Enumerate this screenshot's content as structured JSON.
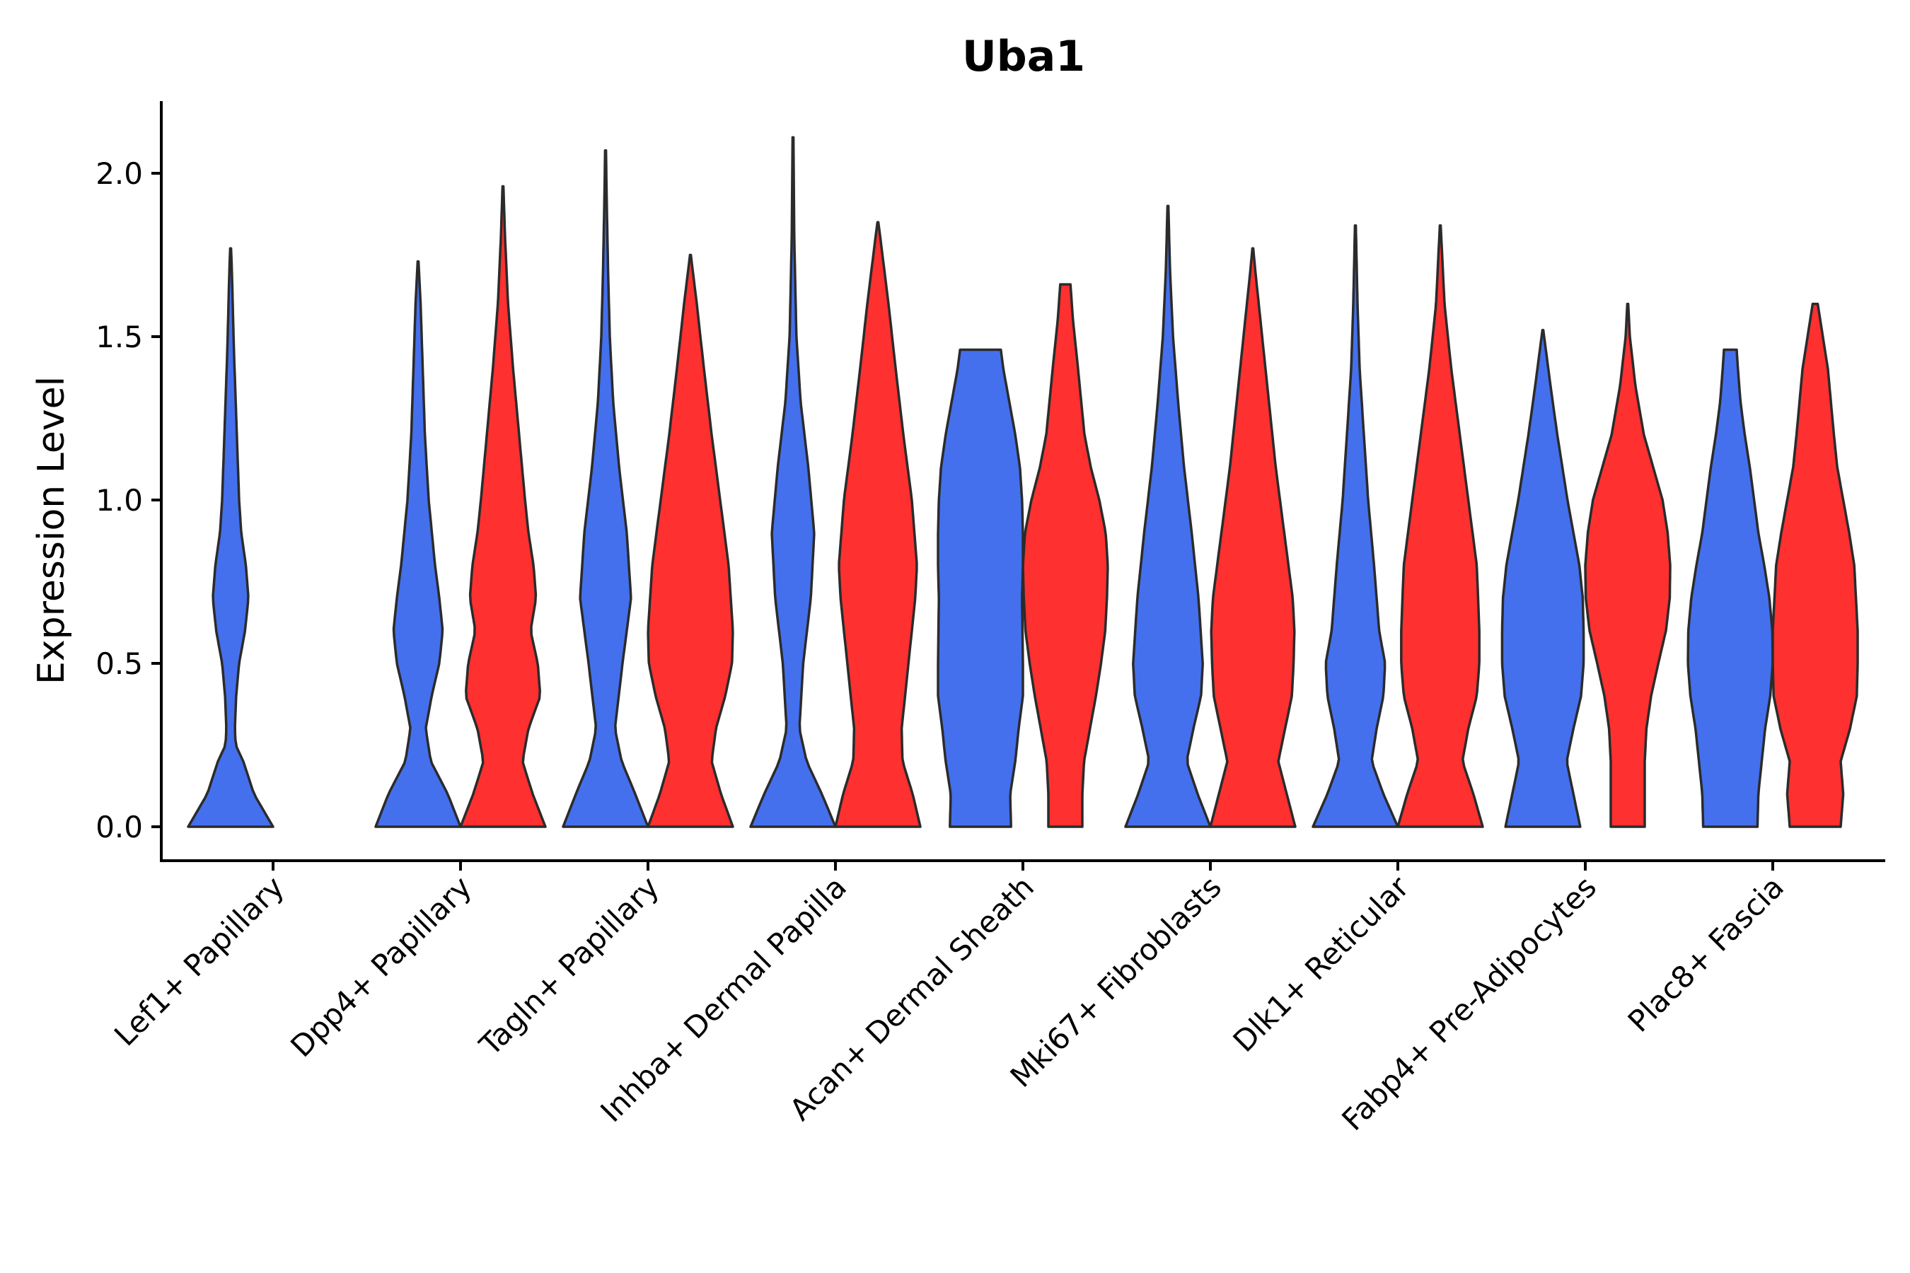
{
  "chart_data": {
    "type": "violin",
    "title": "Uba1",
    "xlabel": "",
    "ylabel": "Expression Level",
    "ylim": [
      -0.1,
      2.22
    ],
    "yticks": [
      0.0,
      0.5,
      1.0,
      1.5,
      2.0
    ],
    "ytick_labels": [
      "0.0",
      "0.5",
      "1.0",
      "1.5",
      "2.0"
    ],
    "grid": false,
    "legend": "none",
    "colors": {
      "blue": "#4470EE",
      "red": "#FF3030",
      "outline": "#2B2B2B"
    },
    "categories": [
      "Lef1+ Papillary",
      "Dpp4+ Papillary",
      "Tagln+ Papillary",
      "Inhba+ Dermal Papilla",
      "Acan+ Dermal Sheath",
      "Mki67+ Fibroblasts",
      "Dlk1+ Reticular",
      "Fabp4+ Pre-Adipocytes",
      "Plac8+ Fascia"
    ],
    "violins": [
      {
        "category": 0,
        "color": "blue",
        "max": 1.77,
        "profile": [
          [
            0,
            1.0
          ],
          [
            0.1,
            0.55
          ],
          [
            0.2,
            0.3
          ],
          [
            0.25,
            0.12
          ],
          [
            0.3,
            0.1
          ],
          [
            0.4,
            0.13
          ],
          [
            0.5,
            0.2
          ],
          [
            0.6,
            0.34
          ],
          [
            0.7,
            0.42
          ],
          [
            0.8,
            0.36
          ],
          [
            0.9,
            0.25
          ],
          [
            1.0,
            0.2
          ],
          [
            1.15,
            0.16
          ],
          [
            1.3,
            0.12
          ],
          [
            1.45,
            0.08
          ],
          [
            1.6,
            0.05
          ],
          [
            1.7,
            0.03
          ],
          [
            1.77,
            0.01
          ]
        ]
      },
      {
        "category": 1,
        "color": "blue",
        "max": 1.73,
        "profile": [
          [
            0,
            1.0
          ],
          [
            0.1,
            0.7
          ],
          [
            0.2,
            0.3
          ],
          [
            0.3,
            0.18
          ],
          [
            0.4,
            0.32
          ],
          [
            0.5,
            0.5
          ],
          [
            0.6,
            0.58
          ],
          [
            0.7,
            0.5
          ],
          [
            0.8,
            0.4
          ],
          [
            1.0,
            0.25
          ],
          [
            1.2,
            0.16
          ],
          [
            1.4,
            0.11
          ],
          [
            1.6,
            0.06
          ],
          [
            1.73,
            0.01
          ]
        ]
      },
      {
        "category": 1,
        "color": "red",
        "max": 1.96,
        "profile": [
          [
            0,
            1.0
          ],
          [
            0.1,
            0.7
          ],
          [
            0.2,
            0.46
          ],
          [
            0.3,
            0.6
          ],
          [
            0.4,
            0.88
          ],
          [
            0.5,
            0.82
          ],
          [
            0.6,
            0.65
          ],
          [
            0.7,
            0.78
          ],
          [
            0.8,
            0.72
          ],
          [
            0.9,
            0.6
          ],
          [
            1.0,
            0.52
          ],
          [
            1.2,
            0.38
          ],
          [
            1.4,
            0.24
          ],
          [
            1.6,
            0.12
          ],
          [
            1.8,
            0.05
          ],
          [
            1.96,
            0.01
          ]
        ]
      },
      {
        "category": 2,
        "color": "blue",
        "max": 2.07,
        "profile": [
          [
            0,
            1.0
          ],
          [
            0.1,
            0.7
          ],
          [
            0.2,
            0.38
          ],
          [
            0.3,
            0.22
          ],
          [
            0.5,
            0.4
          ],
          [
            0.7,
            0.6
          ],
          [
            0.9,
            0.5
          ],
          [
            1.1,
            0.32
          ],
          [
            1.3,
            0.18
          ],
          [
            1.5,
            0.1
          ],
          [
            1.7,
            0.06
          ],
          [
            1.9,
            0.03
          ],
          [
            2.07,
            0.01
          ]
        ]
      },
      {
        "category": 2,
        "color": "red",
        "max": 1.75,
        "profile": [
          [
            0,
            1.0
          ],
          [
            0.1,
            0.72
          ],
          [
            0.2,
            0.5
          ],
          [
            0.3,
            0.6
          ],
          [
            0.4,
            0.82
          ],
          [
            0.5,
            0.98
          ],
          [
            0.6,
            1.0
          ],
          [
            0.8,
            0.9
          ],
          [
            1.0,
            0.7
          ],
          [
            1.2,
            0.5
          ],
          [
            1.4,
            0.32
          ],
          [
            1.6,
            0.15
          ],
          [
            1.75,
            0.01
          ]
        ]
      },
      {
        "category": 3,
        "color": "blue",
        "max": 2.11,
        "profile": [
          [
            0,
            1.0
          ],
          [
            0.1,
            0.68
          ],
          [
            0.2,
            0.32
          ],
          [
            0.3,
            0.15
          ],
          [
            0.5,
            0.24
          ],
          [
            0.7,
            0.42
          ],
          [
            0.9,
            0.5
          ],
          [
            1.1,
            0.36
          ],
          [
            1.3,
            0.18
          ],
          [
            1.5,
            0.08
          ],
          [
            1.8,
            0.03
          ],
          [
            2.11,
            0.01
          ]
        ]
      },
      {
        "category": 3,
        "color": "red",
        "max": 1.85,
        "profile": [
          [
            0,
            1.0
          ],
          [
            0.1,
            0.82
          ],
          [
            0.2,
            0.58
          ],
          [
            0.3,
            0.56
          ],
          [
            0.5,
            0.72
          ],
          [
            0.7,
            0.88
          ],
          [
            0.8,
            0.92
          ],
          [
            1.0,
            0.8
          ],
          [
            1.2,
            0.6
          ],
          [
            1.4,
            0.42
          ],
          [
            1.6,
            0.25
          ],
          [
            1.8,
            0.06
          ],
          [
            1.85,
            0.01
          ]
        ]
      },
      {
        "category": 4,
        "color": "blue",
        "max": 1.46,
        "profile": [
          [
            0,
            0.72
          ],
          [
            0.1,
            0.7
          ],
          [
            0.2,
            0.82
          ],
          [
            0.3,
            0.9
          ],
          [
            0.4,
            1.0
          ],
          [
            0.5,
            1.0
          ],
          [
            0.6,
            0.99
          ],
          [
            0.7,
            0.98
          ],
          [
            0.8,
            1.0
          ],
          [
            0.9,
            1.0
          ],
          [
            1.0,
            0.98
          ],
          [
            1.1,
            0.93
          ],
          [
            1.2,
            0.82
          ],
          [
            1.3,
            0.68
          ],
          [
            1.4,
            0.54
          ],
          [
            1.46,
            0.48
          ]
        ]
      },
      {
        "category": 4,
        "color": "red",
        "max": 1.66,
        "profile": [
          [
            0,
            0.4
          ],
          [
            0.1,
            0.4
          ],
          [
            0.2,
            0.44
          ],
          [
            0.3,
            0.58
          ],
          [
            0.4,
            0.72
          ],
          [
            0.5,
            0.84
          ],
          [
            0.6,
            0.94
          ],
          [
            0.7,
            0.98
          ],
          [
            0.8,
            1.0
          ],
          [
            0.9,
            0.95
          ],
          [
            1.0,
            0.8
          ],
          [
            1.1,
            0.6
          ],
          [
            1.2,
            0.45
          ],
          [
            1.4,
            0.3
          ],
          [
            1.55,
            0.18
          ],
          [
            1.66,
            0.12
          ]
        ]
      },
      {
        "category": 5,
        "color": "blue",
        "max": 1.9,
        "profile": [
          [
            0,
            1.0
          ],
          [
            0.1,
            0.7
          ],
          [
            0.2,
            0.44
          ],
          [
            0.3,
            0.6
          ],
          [
            0.4,
            0.78
          ],
          [
            0.5,
            0.82
          ],
          [
            0.7,
            0.72
          ],
          [
            0.9,
            0.56
          ],
          [
            1.1,
            0.38
          ],
          [
            1.3,
            0.24
          ],
          [
            1.5,
            0.12
          ],
          [
            1.7,
            0.05
          ],
          [
            1.9,
            0.01
          ]
        ]
      },
      {
        "category": 5,
        "color": "red",
        "max": 1.77,
        "profile": [
          [
            0,
            1.0
          ],
          [
            0.1,
            0.8
          ],
          [
            0.2,
            0.6
          ],
          [
            0.3,
            0.76
          ],
          [
            0.4,
            0.92
          ],
          [
            0.5,
            0.96
          ],
          [
            0.6,
            0.98
          ],
          [
            0.7,
            0.94
          ],
          [
            0.9,
            0.74
          ],
          [
            1.1,
            0.54
          ],
          [
            1.3,
            0.38
          ],
          [
            1.5,
            0.22
          ],
          [
            1.7,
            0.06
          ],
          [
            1.77,
            0.01
          ]
        ]
      },
      {
        "category": 6,
        "color": "blue",
        "max": 1.84,
        "profile": [
          [
            0,
            1.0
          ],
          [
            0.1,
            0.66
          ],
          [
            0.2,
            0.38
          ],
          [
            0.3,
            0.5
          ],
          [
            0.4,
            0.66
          ],
          [
            0.5,
            0.7
          ],
          [
            0.6,
            0.56
          ],
          [
            0.8,
            0.44
          ],
          [
            1.0,
            0.3
          ],
          [
            1.2,
            0.2
          ],
          [
            1.4,
            0.1
          ],
          [
            1.6,
            0.05
          ],
          [
            1.84,
            0.01
          ]
        ]
      },
      {
        "category": 6,
        "color": "red",
        "max": 1.84,
        "profile": [
          [
            0,
            1.0
          ],
          [
            0.1,
            0.78
          ],
          [
            0.2,
            0.52
          ],
          [
            0.3,
            0.66
          ],
          [
            0.4,
            0.86
          ],
          [
            0.5,
            0.92
          ],
          [
            0.6,
            0.92
          ],
          [
            0.8,
            0.86
          ],
          [
            1.0,
            0.66
          ],
          [
            1.2,
            0.46
          ],
          [
            1.4,
            0.26
          ],
          [
            1.6,
            0.1
          ],
          [
            1.84,
            0.01
          ]
        ]
      },
      {
        "category": 7,
        "color": "blue",
        "max": 1.52,
        "profile": [
          [
            0,
            0.88
          ],
          [
            0.1,
            0.72
          ],
          [
            0.2,
            0.56
          ],
          [
            0.3,
            0.72
          ],
          [
            0.4,
            0.9
          ],
          [
            0.5,
            0.96
          ],
          [
            0.6,
            0.96
          ],
          [
            0.7,
            0.94
          ],
          [
            0.8,
            0.86
          ],
          [
            1.0,
            0.58
          ],
          [
            1.2,
            0.34
          ],
          [
            1.35,
            0.18
          ],
          [
            1.52,
            0.01
          ]
        ]
      },
      {
        "category": 7,
        "color": "red",
        "max": 1.6,
        "profile": [
          [
            0,
            0.4
          ],
          [
            0.1,
            0.4
          ],
          [
            0.2,
            0.4
          ],
          [
            0.3,
            0.44
          ],
          [
            0.4,
            0.55
          ],
          [
            0.5,
            0.72
          ],
          [
            0.6,
            0.9
          ],
          [
            0.7,
            0.99
          ],
          [
            0.8,
            1.0
          ],
          [
            0.9,
            0.94
          ],
          [
            1.0,
            0.82
          ],
          [
            1.1,
            0.6
          ],
          [
            1.2,
            0.38
          ],
          [
            1.35,
            0.18
          ],
          [
            1.5,
            0.05
          ],
          [
            1.6,
            0.01
          ]
        ]
      },
      {
        "category": 8,
        "color": "blue",
        "max": 1.46,
        "profile": [
          [
            0,
            0.64
          ],
          [
            0.1,
            0.66
          ],
          [
            0.2,
            0.74
          ],
          [
            0.3,
            0.82
          ],
          [
            0.4,
            0.94
          ],
          [
            0.5,
            1.0
          ],
          [
            0.6,
            0.99
          ],
          [
            0.7,
            0.92
          ],
          [
            0.8,
            0.8
          ],
          [
            0.9,
            0.66
          ],
          [
            1.0,
            0.56
          ],
          [
            1.1,
            0.46
          ],
          [
            1.2,
            0.34
          ],
          [
            1.3,
            0.24
          ],
          [
            1.4,
            0.18
          ],
          [
            1.46,
            0.15
          ]
        ]
      },
      {
        "category": 8,
        "color": "red",
        "max": 1.6,
        "profile": [
          [
            0,
            0.6
          ],
          [
            0.1,
            0.66
          ],
          [
            0.2,
            0.6
          ],
          [
            0.3,
            0.82
          ],
          [
            0.4,
            0.98
          ],
          [
            0.5,
            1.0
          ],
          [
            0.6,
            1.0
          ],
          [
            0.7,
            0.96
          ],
          [
            0.8,
            0.92
          ],
          [
            0.9,
            0.8
          ],
          [
            1.0,
            0.66
          ],
          [
            1.1,
            0.52
          ],
          [
            1.2,
            0.44
          ],
          [
            1.4,
            0.3
          ],
          [
            1.55,
            0.12
          ],
          [
            1.6,
            0.06
          ]
        ]
      }
    ]
  }
}
